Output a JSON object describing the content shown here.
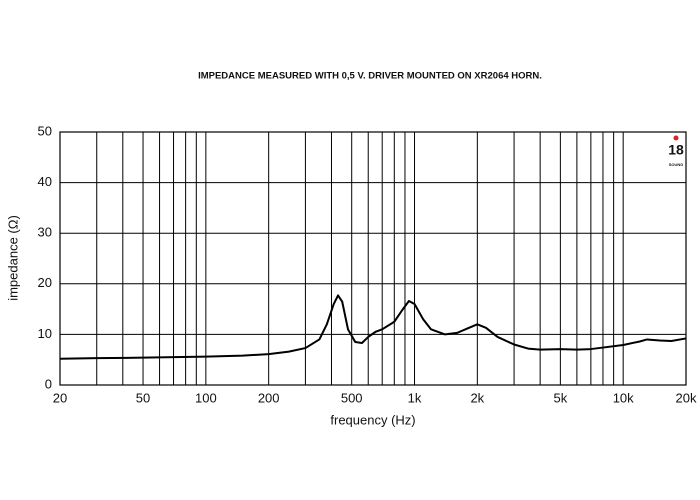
{
  "chart_data": {
    "type": "line",
    "title": "IMPEDANCE MEASURED WITH 0,5 V. DRIVER MOUNTED ON XR2064 HORN.",
    "x_label": "frequency (Hz)",
    "y_label": "impedance (Ω)",
    "logo": "18",
    "logo_sub": "SOUND",
    "x": [
      20,
      30,
      50,
      100,
      150,
      200,
      250,
      300,
      350,
      380,
      410,
      430,
      450,
      480,
      520,
      560,
      600,
      650,
      700,
      800,
      880,
      940,
      1000,
      1100,
      1200,
      1400,
      1600,
      1800,
      2000,
      2200,
      2500,
      3000,
      3500,
      4000,
      5000,
      6000,
      7000,
      8000,
      10000,
      12000,
      13000,
      15000,
      17000,
      20000
    ],
    "series": [
      {
        "color": "#000000",
        "values": [
          5.2,
          5.3,
          5.4,
          5.6,
          5.8,
          6.1,
          6.6,
          7.3,
          9,
          12,
          16,
          17.7,
          16.5,
          11,
          8.5,
          8.3,
          9.5,
          10.5,
          11,
          12.5,
          15,
          16.6,
          16,
          13,
          11,
          10,
          10.3,
          11.2,
          12,
          11.3,
          9.5,
          8,
          7.2,
          7,
          7.1,
          7,
          7.1,
          7.4,
          7.9,
          8.6,
          9,
          8.8,
          8.7,
          9.2
        ]
      }
    ],
    "xlog": true,
    "xlim": [
      20,
      20000
    ],
    "xticks": [
      20,
      50,
      100,
      200,
      500,
      {
        "value": 1000,
        "label": "1k"
      },
      {
        "value": 2000,
        "label": "2k"
      },
      {
        "value": 5000,
        "label": "5k"
      },
      {
        "value": 10000,
        "label": "10k"
      },
      {
        "value": 20000,
        "label": "20k"
      }
    ],
    "xminor": [
      30,
      40,
      60,
      70,
      80,
      90,
      300,
      400,
      600,
      700,
      800,
      900,
      3000,
      4000,
      6000,
      7000,
      8000,
      9000
    ],
    "ylim": [
      0,
      50
    ],
    "yticks": [
      0,
      10,
      20,
      30,
      40,
      50
    ],
    "grid": true
  }
}
